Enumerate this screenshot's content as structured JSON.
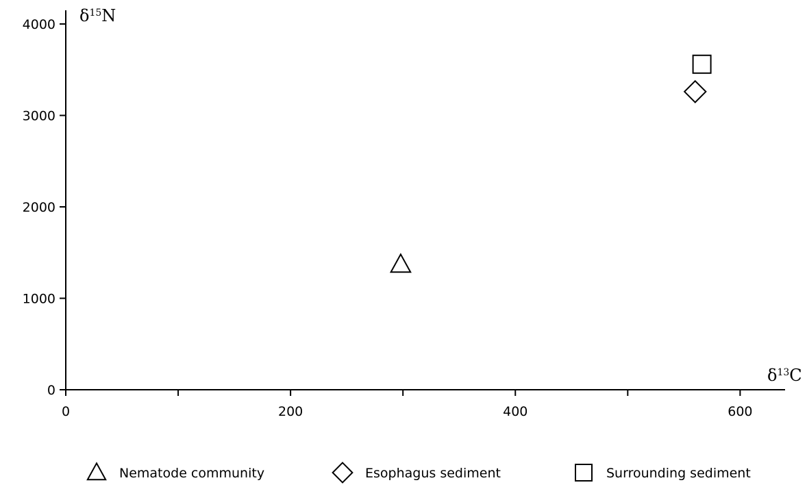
{
  "chart_data": {
    "type": "scatter",
    "title": "",
    "xlabel": {
      "symbol": "δ",
      "superscript": "13",
      "element": "C"
    },
    "ylabel": {
      "symbol": "δ",
      "superscript": "15",
      "element": "N"
    },
    "xlim": [
      0,
      640
    ],
    "ylim": [
      0,
      4150
    ],
    "x_ticks_minor": [
      100,
      300,
      500
    ],
    "x_tick_labels": [
      "0",
      "200",
      "400",
      "600"
    ],
    "x_tick_values": [
      0,
      200,
      400,
      600
    ],
    "y_tick_labels": [
      "0",
      "1000",
      "2000",
      "3000",
      "4000"
    ],
    "y_tick_values": [
      0,
      1000,
      2000,
      3000,
      4000
    ],
    "grid": false,
    "legend_placement": "bottom",
    "series": [
      {
        "name": "Nematode community",
        "marker": "triangle",
        "x": [
          298
        ],
        "y": [
          1370
        ]
      },
      {
        "name": "Esophagus sediment",
        "marker": "diamond",
        "x": [
          560
        ],
        "y": [
          3260
        ]
      },
      {
        "name": "Surrounding sediment",
        "marker": "square",
        "x": [
          566
        ],
        "y": [
          3560
        ]
      }
    ],
    "colors": {
      "marker_stroke": "#000000",
      "background": "#ffffff"
    }
  }
}
